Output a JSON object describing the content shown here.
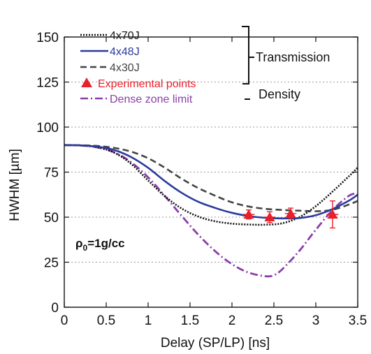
{
  "chart_data": {
    "type": "line",
    "xlabel": "Delay (SP/LP) [ns]",
    "ylabel": "HWHM [µm]",
    "xlim": [
      0,
      3.5
    ],
    "ylim": [
      0,
      150
    ],
    "xticks": [
      "0",
      "0.5",
      "1",
      "1.5",
      "2",
      "2.5",
      "3",
      "3.5"
    ],
    "yticks": [
      "0",
      "25",
      "50",
      "75",
      "100",
      "125",
      "150"
    ],
    "grid": "horizontal dotted",
    "legend_position": "top-left",
    "series": [
      {
        "name": "4x70J",
        "color": "#111111",
        "style": "dotted",
        "x": [
          0,
          0.2,
          0.4,
          0.6,
          0.8,
          1.0,
          1.2,
          1.4,
          1.6,
          1.8,
          2.0,
          2.2,
          2.4,
          2.6,
          2.8,
          3.0,
          3.2,
          3.4,
          3.5
        ],
        "y": [
          90,
          89.8,
          88.7,
          85.7,
          79.5,
          70.4,
          61.6,
          54.8,
          50.3,
          47.7,
          46.4,
          45.9,
          45.8,
          46.6,
          49.9,
          56.1,
          64.2,
          72.9,
          77.5
        ]
      },
      {
        "name": "4x48J",
        "color": "#2b3a9c",
        "style": "solid",
        "x": [
          0,
          0.2,
          0.4,
          0.6,
          0.8,
          1.0,
          1.2,
          1.4,
          1.6,
          1.8,
          2.0,
          2.2,
          2.4,
          2.6,
          2.8,
          3.0,
          3.2,
          3.4,
          3.5
        ],
        "y": [
          90,
          89.8,
          89.1,
          87.2,
          83.3,
          77.4,
          70.0,
          63.5,
          58.5,
          55.1,
          52.4,
          50.6,
          49.6,
          49.3,
          49.5,
          51.1,
          54.5,
          59.3,
          62.5
        ]
      },
      {
        "name": "4x30J",
        "color": "#444444",
        "style": "dashed",
        "x": [
          0,
          0.2,
          0.4,
          0.6,
          0.8,
          1.0,
          1.2,
          1.4,
          1.6,
          1.8,
          2.0,
          2.2,
          2.4,
          2.6,
          2.8,
          3.0,
          3.2,
          3.4,
          3.5
        ],
        "y": [
          90,
          89.9,
          89.5,
          88.4,
          86.3,
          82.7,
          77.4,
          71.3,
          66.1,
          61.9,
          58.2,
          55.9,
          54.6,
          54.0,
          53.6,
          53.3,
          54.1,
          57.1,
          59.0
        ]
      },
      {
        "name": "Dense zone limit",
        "color": "#8a3ea8",
        "style": "dash-dot",
        "x": [
          0,
          0.2,
          0.4,
          0.6,
          0.8,
          1.0,
          1.2,
          1.4,
          1.6,
          1.8,
          2.0,
          2.2,
          2.4,
          2.5,
          2.6,
          2.8,
          3.0,
          3.2,
          3.4,
          3.5
        ],
        "y": [
          90,
          89.8,
          88.7,
          85.9,
          80.4,
          72.1,
          61.7,
          50.7,
          40.2,
          31.1,
          23.9,
          19.2,
          17.2,
          17.8,
          21.1,
          31.1,
          43.0,
          54.0,
          62.0,
          63.0
        ]
      }
    ],
    "experimental_points": {
      "name": "Experimental points",
      "color": "#e8202a",
      "marker": "triangle",
      "x": [
        2.2,
        2.45,
        2.7,
        3.2
      ],
      "y": [
        51.5,
        50.0,
        52.0,
        51.5
      ],
      "yerr": [
        2.5,
        3.0,
        3.0,
        7.5
      ],
      "xerr": [
        0.07,
        0.07,
        0.07,
        0.07
      ]
    },
    "legend": [
      {
        "label": "4x70J",
        "color": "#111111"
      },
      {
        "label": "4x48J",
        "color": "#2b3a9c"
      },
      {
        "label": "4x30J",
        "color": "#444444"
      },
      {
        "label": "Experimental points",
        "color": "#e8202a"
      },
      {
        "label": "Dense zone limit",
        "color": "#8a3ea8"
      }
    ],
    "bracket_labels": {
      "transmission": "Transmission",
      "density": "Density"
    },
    "annotation": {
      "rho": "ρ",
      "sub": "0",
      "rest": "=1g/cc"
    }
  }
}
